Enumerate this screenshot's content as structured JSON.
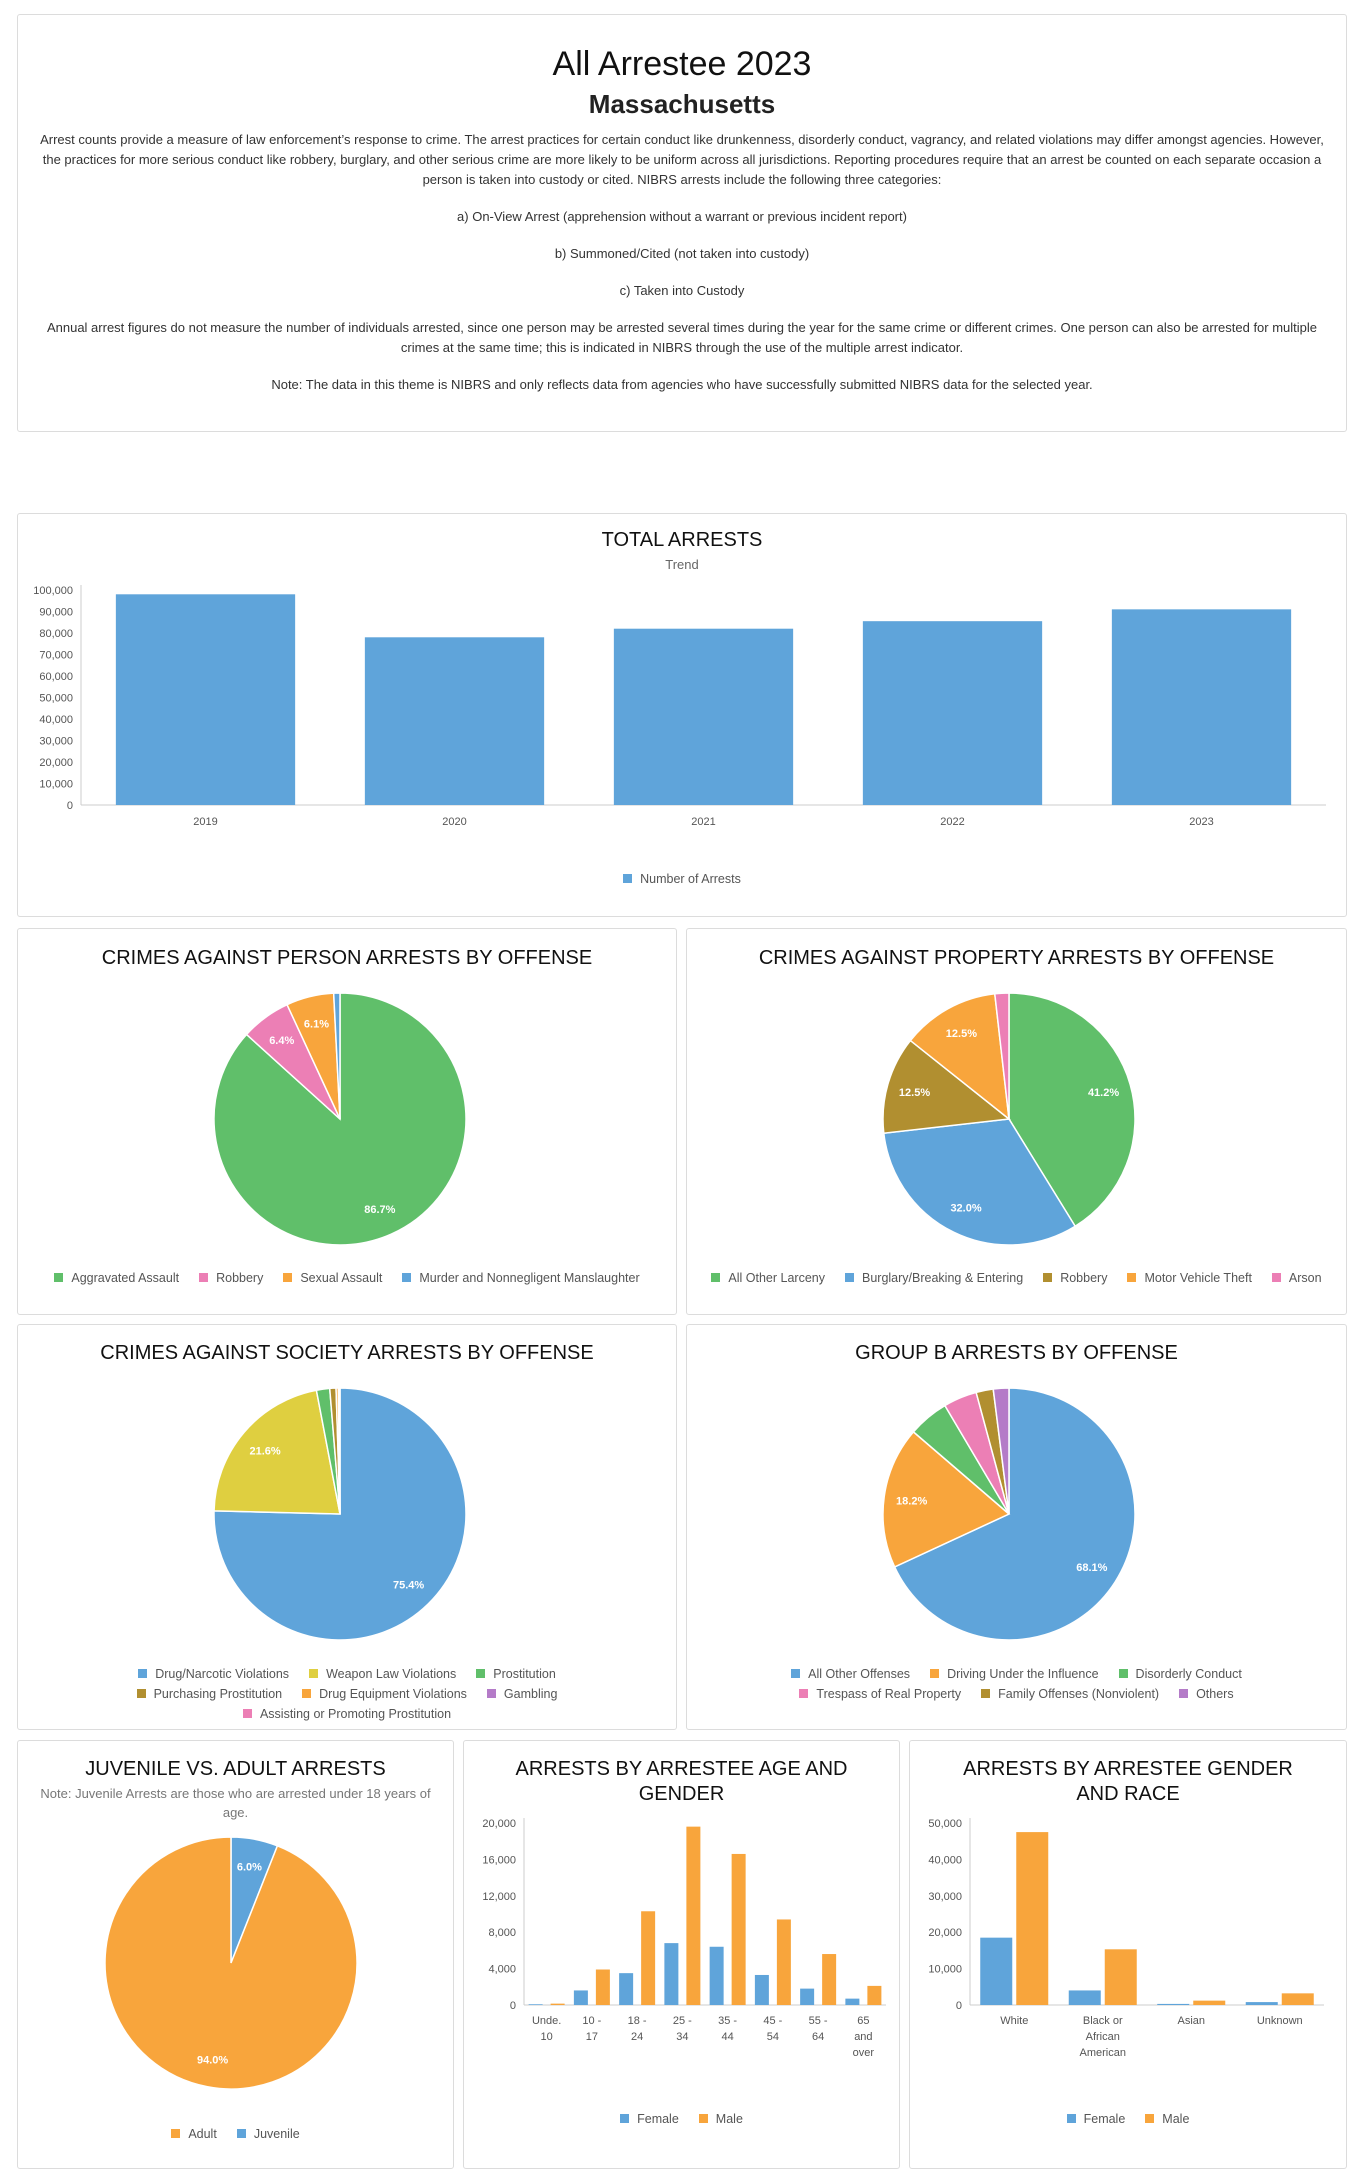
{
  "header": {
    "title": "All Arrestee 2023",
    "state": "Massachusetts",
    "paragraphs": [
      "Arrest counts provide a measure of law enforcement’s response to crime. The arrest practices for certain conduct like drunkenness, disorderly conduct, vagrancy, and related violations may differ amongst agencies. However, the practices for more serious conduct like robbery, burglary, and other serious crime are more likely to be uniform across all jurisdictions. Reporting procedures require that an arrest be counted on each separate occasion a person is taken into custody or cited. NIBRS arrests include the following three categories:",
      "a) On-View Arrest (apprehension without a warrant or previous incident report)",
      "b) Summoned/Cited (not taken into custody)",
      "c) Taken into Custody",
      "Annual arrest figures do not measure the number of individuals arrested, since one person may be arrested several times during the year for the same crime or different crimes. One person can also be arrested for multiple crimes at the same time; this is indicated in NIBRS through the use of the multiple arrest indicator.",
      "Note: The data in this theme is NIBRS and only reflects data from agencies who have successfully submitted NIBRS data for the selected year."
    ]
  },
  "colors": {
    "blue": "#5fa4da",
    "green": "#60bf6a",
    "pink": "#ec7fb5",
    "orange": "#f8a53c",
    "olive": "#b18f30",
    "yellow": "#dfcf40",
    "purple": "#b47bc8",
    "axis": "#666666"
  },
  "chart_data": [
    {
      "id": "total_arrests",
      "type": "bar",
      "title": "TOTAL ARRESTS",
      "subtitle": "Trend",
      "categories": [
        "2019",
        "2020",
        "2021",
        "2022",
        "2023"
      ],
      "series": [
        {
          "name": "Number of Arrests",
          "values": [
            98000,
            78000,
            82000,
            85500,
            91000
          ]
        }
      ],
      "ylim": [
        0,
        100000
      ],
      "yticks": [
        "100,000",
        "90,000",
        "80,000",
        "70,000",
        "60,000",
        "50,000",
        "40,000",
        "30,000",
        "20,000",
        "10,000",
        "0"
      ]
    },
    {
      "id": "person",
      "type": "pie",
      "title": "CRIMES AGAINST PERSON ARRESTS BY OFFENSE",
      "slices": [
        {
          "name": "Aggravated Assault",
          "value": 86.7,
          "label": "86.7%",
          "color": "#60bf6a"
        },
        {
          "name": "Robbery",
          "value": 6.4,
          "label": "6.4%",
          "color": "#ec7fb5"
        },
        {
          "name": "Sexual Assault",
          "value": 6.1,
          "label": "6.1%",
          "color": "#f8a53c"
        },
        {
          "name": "Murder and Nonnegligent Manslaughter",
          "value": 0.8,
          "label": "",
          "color": "#5fa4da"
        }
      ],
      "order": [
        0,
        1,
        2,
        3
      ]
    },
    {
      "id": "property",
      "type": "pie",
      "title": "CRIMES AGAINST PROPERTY ARRESTS BY OFFENSE",
      "slices": [
        {
          "name": "All Other Larceny",
          "value": 41.2,
          "label": "41.2%",
          "color": "#60bf6a"
        },
        {
          "name": "Burglary/Breaking & Entering",
          "value": 32.0,
          "label": "32.0%",
          "color": "#5fa4da"
        },
        {
          "name": "Robbery",
          "value": 12.5,
          "label": "12.5%",
          "color": "#b18f30"
        },
        {
          "name": "Motor Vehicle Theft",
          "value": 12.5,
          "label": "12.5%",
          "color": "#f8a53c"
        },
        {
          "name": "Arson",
          "value": 1.8,
          "label": "",
          "color": "#ec7fb5"
        }
      ],
      "order": [
        0,
        1,
        2,
        3,
        4
      ]
    },
    {
      "id": "society",
      "type": "pie",
      "title": "CRIMES AGAINST SOCIETY ARRESTS BY OFFENSE",
      "slices": [
        {
          "name": "Drug/Narcotic Violations",
          "value": 75.4,
          "label": "75.4%",
          "color": "#5fa4da"
        },
        {
          "name": "Weapon Law Violations",
          "value": 21.6,
          "label": "21.6%",
          "color": "#dfcf40"
        },
        {
          "name": "Prostitution",
          "value": 1.7,
          "label": "",
          "color": "#60bf6a"
        },
        {
          "name": "Purchasing Prostitution",
          "value": 0.8,
          "label": "",
          "color": "#b18f30"
        },
        {
          "name": "Drug Equipment Violations",
          "value": 0.3,
          "label": "",
          "color": "#f8a53c"
        },
        {
          "name": "Gambling",
          "value": 0.1,
          "label": "",
          "color": "#b47bc8"
        },
        {
          "name": "Assisting or Promoting Prostitution",
          "value": 0.1,
          "label": "",
          "color": "#ec7fb5"
        }
      ],
      "order": [
        0,
        1,
        2,
        3,
        4,
        5,
        6
      ]
    },
    {
      "id": "groupb",
      "type": "pie",
      "title": "GROUP B ARRESTS BY OFFENSE",
      "slices": [
        {
          "name": "All Other Offenses",
          "value": 68.1,
          "label": "68.1%",
          "color": "#5fa4da"
        },
        {
          "name": "Driving Under the Influence",
          "value": 18.2,
          "label": "18.2%",
          "color": "#f8a53c"
        },
        {
          "name": "Disorderly Conduct",
          "value": 5.2,
          "label": "",
          "color": "#60bf6a"
        },
        {
          "name": "Trespass of Real Property",
          "value": 4.3,
          "label": "",
          "color": "#ec7fb5"
        },
        {
          "name": "Family Offenses (Nonviolent)",
          "value": 2.2,
          "label": "",
          "color": "#b18f30"
        },
        {
          "name": "Others",
          "value": 2.0,
          "label": "",
          "color": "#b47bc8"
        }
      ],
      "order": [
        0,
        1,
        2,
        3,
        4,
        5
      ]
    },
    {
      "id": "juvenile",
      "type": "pie",
      "title": "JUVENILE VS. ADULT ARRESTS",
      "note": "Note: Juvenile Arrests are those who are arrested under 18 years of age.",
      "slices": [
        {
          "name": "Adult",
          "value": 94.0,
          "label": "94.0%",
          "color": "#f8a53c"
        },
        {
          "name": "Juvenile",
          "value": 6.0,
          "label": "6.0%",
          "color": "#5fa4da"
        }
      ],
      "order": [
        1,
        0
      ]
    },
    {
      "id": "age_gender",
      "type": "bar",
      "title": "ARRESTS BY ARRESTEE AGE AND GENDER",
      "categories": [
        [
          "Unde.",
          "10"
        ],
        [
          "10 -",
          "17"
        ],
        [
          "18 -",
          "24"
        ],
        [
          "25 -",
          "34"
        ],
        [
          "35 -",
          "44"
        ],
        [
          "45 -",
          "54"
        ],
        [
          "55 -",
          "64"
        ],
        [
          "65",
          "and",
          "over"
        ]
      ],
      "series": [
        {
          "name": "Female",
          "values": [
            80,
            1600,
            3500,
            6800,
            6400,
            3300,
            1800,
            700
          ]
        },
        {
          "name": "Male",
          "values": [
            150,
            3900,
            10300,
            19600,
            16600,
            9400,
            5600,
            2100
          ]
        }
      ],
      "ylim": [
        0,
        20000
      ],
      "yticks": [
        "20,000",
        "16,000",
        "12,000",
        "8,000",
        "4,000",
        "0"
      ]
    },
    {
      "id": "gender_race",
      "type": "bar",
      "title": "ARRESTS BY ARRESTEE GENDER AND RACE",
      "categories": [
        [
          "White"
        ],
        [
          "Black or",
          "African",
          "American"
        ],
        [
          "Asian"
        ],
        [
          "Unknown"
        ]
      ],
      "series": [
        {
          "name": "Female",
          "values": [
            18500,
            4000,
            300,
            800
          ]
        },
        {
          "name": "Male",
          "values": [
            47500,
            15300,
            1200,
            3200
          ]
        }
      ],
      "ylim": [
        0,
        50000
      ],
      "yticks": [
        "50,000",
        "40,000",
        "30,000",
        "20,000",
        "10,000",
        "0"
      ]
    }
  ]
}
